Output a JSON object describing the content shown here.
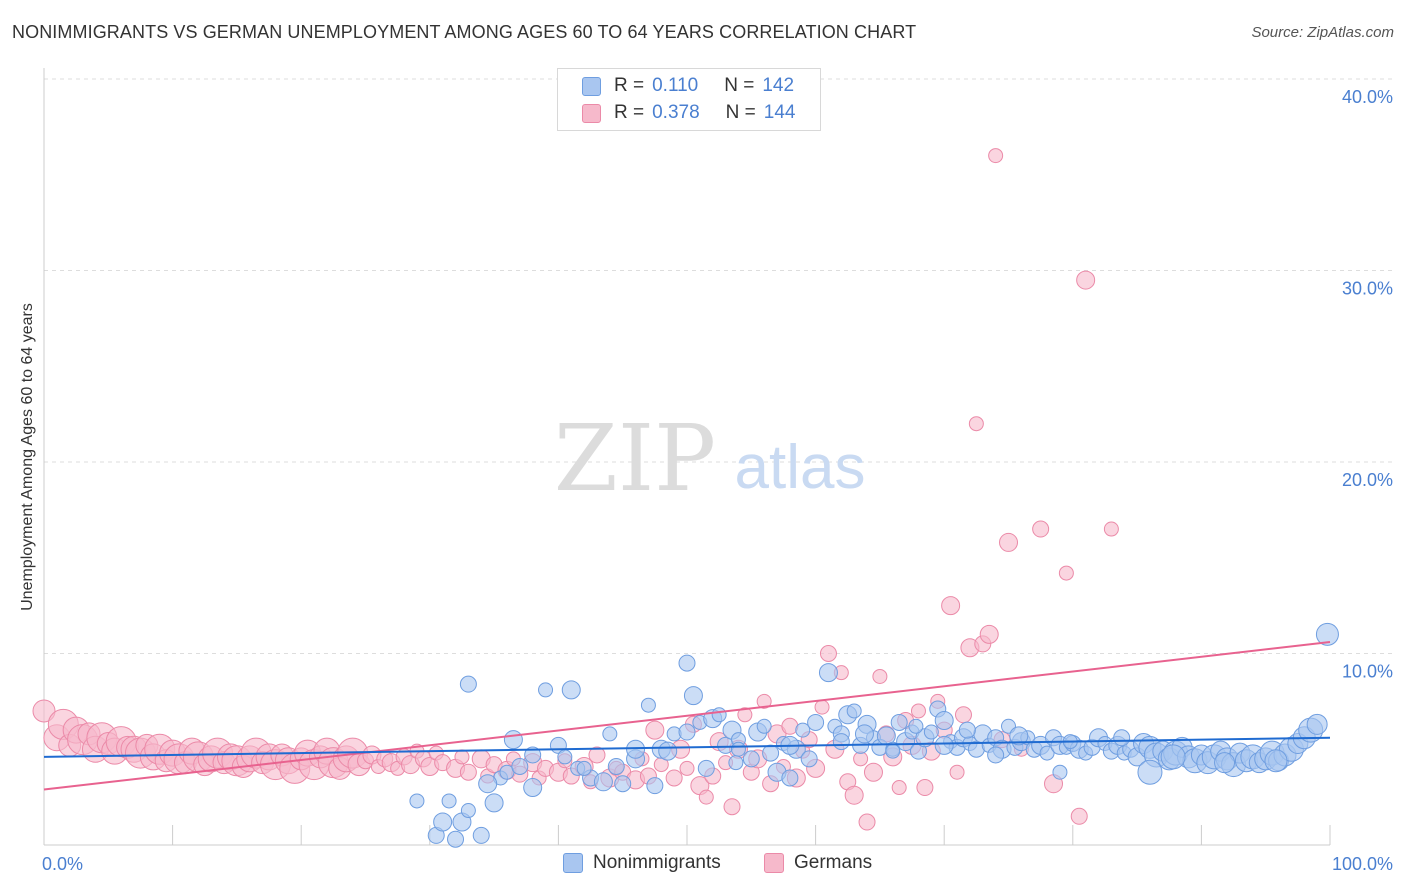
{
  "title": "NONIMMIGRANTS VS GERMAN UNEMPLOYMENT AMONG AGES 60 TO 64 YEARS CORRELATION CHART",
  "source": "Source: ZipAtlas.com",
  "watermark": {
    "zip": "ZIP",
    "atlas": "atlas"
  },
  "legend_top": {
    "rows": [
      {
        "r_label": "R =",
        "r_value": "0.110",
        "n_label": "N =",
        "n_value": "142"
      },
      {
        "r_label": "R =",
        "r_value": "0.378",
        "n_label": "N =",
        "n_value": "144"
      }
    ]
  },
  "legend_bottom": {
    "items": [
      "Nonimmigrants",
      "Germans"
    ]
  },
  "colors": {
    "blue_fill": "#a9c6f0",
    "blue_stroke": "#6f9ee0",
    "blue_line": "#1f6bd1",
    "pink_fill": "#f6b9cb",
    "pink_stroke": "#eb8aa8",
    "pink_line": "#e8628f",
    "tick_label": "#4a7fd0",
    "grid": "#dddddd"
  },
  "chart_data": {
    "type": "scatter",
    "title": "NONIMMIGRANTS VS GERMAN UNEMPLOYMENT AMONG AGES 60 TO 64 YEARS CORRELATION CHART",
    "xlabel": "",
    "ylabel": "Unemployment Among Ages 60 to 64 years",
    "xlim": [
      0,
      100
    ],
    "ylim": [
      0,
      40
    ],
    "x_tick_labels": [
      "0.0%",
      "100.0%"
    ],
    "y_ticks": [
      10,
      20,
      30,
      40
    ],
    "y_tick_labels": [
      "10.0%",
      "20.0%",
      "30.0%",
      "40.0%"
    ],
    "grid": true,
    "legend_position": "top-center",
    "series": [
      {
        "name": "Nonimmigrants",
        "r": 0.11,
        "n": 142,
        "trend": {
          "x": [
            0,
            100
          ],
          "y": [
            4.6,
            5.6
          ]
        },
        "points": [
          [
            29.0,
            2.3
          ],
          [
            30.5,
            0.5
          ],
          [
            31.0,
            1.2
          ],
          [
            31.5,
            2.3
          ],
          [
            32.0,
            0.3
          ],
          [
            32.5,
            1.2
          ],
          [
            33.0,
            1.8
          ],
          [
            34.0,
            0.5
          ],
          [
            35.0,
            2.2
          ],
          [
            35.5,
            3.5
          ],
          [
            33.0,
            8.4
          ],
          [
            34.5,
            3.2
          ],
          [
            36.0,
            3.8
          ],
          [
            37.0,
            4.1
          ],
          [
            38.0,
            3.0
          ],
          [
            39.0,
            8.1
          ],
          [
            40.0,
            5.2
          ],
          [
            41.0,
            8.1
          ],
          [
            41.5,
            4.0
          ],
          [
            42.5,
            3.5
          ],
          [
            43.5,
            3.3
          ],
          [
            44.0,
            5.8
          ],
          [
            45.0,
            3.2
          ],
          [
            46.0,
            4.5
          ],
          [
            47.0,
            7.3
          ],
          [
            47.5,
            3.1
          ],
          [
            48.0,
            5.0
          ],
          [
            49.0,
            5.8
          ],
          [
            50.0,
            9.5
          ],
          [
            50.5,
            7.8
          ],
          [
            51.0,
            6.4
          ],
          [
            51.5,
            4.0
          ],
          [
            52.0,
            6.6
          ],
          [
            52.5,
            6.8
          ],
          [
            53.0,
            5.2
          ],
          [
            53.5,
            6.0
          ],
          [
            54.0,
            5.5
          ],
          [
            55.0,
            4.5
          ],
          [
            55.5,
            5.9
          ],
          [
            56.0,
            6.2
          ],
          [
            56.5,
            4.8
          ],
          [
            57.0,
            3.8
          ],
          [
            57.5,
            5.3
          ],
          [
            58.0,
            3.5
          ],
          [
            58.5,
            5.0
          ],
          [
            59.0,
            6.0
          ],
          [
            60.0,
            6.4
          ],
          [
            61.0,
            9.0
          ],
          [
            61.5,
            6.2
          ],
          [
            62.0,
            5.8
          ],
          [
            62.5,
            6.8
          ],
          [
            63.0,
            7.0
          ],
          [
            63.5,
            5.2
          ],
          [
            64.0,
            6.3
          ],
          [
            64.5,
            5.6
          ],
          [
            65.0,
            5.1
          ],
          [
            65.5,
            5.7
          ],
          [
            66.0,
            5.0
          ],
          [
            66.5,
            6.4
          ],
          [
            67.0,
            5.4
          ],
          [
            67.5,
            5.9
          ],
          [
            68.0,
            4.9
          ],
          [
            68.5,
            5.6
          ],
          [
            69.0,
            5.9
          ],
          [
            69.5,
            7.1
          ],
          [
            70.0,
            6.5
          ],
          [
            70.5,
            5.4
          ],
          [
            71.0,
            5.1
          ],
          [
            71.5,
            5.6
          ],
          [
            72.0,
            5.3
          ],
          [
            72.5,
            5.0
          ],
          [
            73.0,
            5.8
          ],
          [
            73.5,
            5.2
          ],
          [
            74.0,
            5.6
          ],
          [
            74.5,
            5.0
          ],
          [
            75.0,
            6.2
          ],
          [
            75.5,
            5.1
          ],
          [
            76.0,
            5.4
          ],
          [
            76.5,
            5.6
          ],
          [
            77.0,
            5.0
          ],
          [
            77.5,
            5.2
          ],
          [
            78.0,
            4.8
          ],
          [
            78.5,
            5.6
          ],
          [
            79.0,
            5.2
          ],
          [
            79.5,
            5.1
          ],
          [
            80.0,
            5.3
          ],
          [
            80.5,
            5.0
          ],
          [
            81.0,
            4.8
          ],
          [
            81.5,
            5.1
          ],
          [
            82.0,
            5.6
          ],
          [
            82.5,
            5.3
          ],
          [
            83.0,
            4.9
          ],
          [
            83.5,
            5.2
          ],
          [
            84.0,
            4.8
          ],
          [
            84.5,
            5.0
          ],
          [
            85.0,
            4.6
          ],
          [
            85.5,
            5.3
          ],
          [
            86.0,
            5.1
          ],
          [
            86.5,
            4.7
          ],
          [
            87.0,
            4.9
          ],
          [
            87.5,
            4.5
          ],
          [
            88.0,
            4.8
          ],
          [
            88.5,
            5.1
          ],
          [
            89.0,
            4.6
          ],
          [
            89.5,
            4.4
          ],
          [
            90.0,
            4.7
          ],
          [
            90.5,
            4.3
          ],
          [
            91.0,
            4.6
          ],
          [
            91.5,
            4.9
          ],
          [
            92.0,
            4.5
          ],
          [
            92.5,
            4.2
          ],
          [
            93.0,
            4.8
          ],
          [
            93.5,
            4.4
          ],
          [
            94.0,
            4.6
          ],
          [
            94.5,
            4.3
          ],
          [
            95.0,
            4.5
          ],
          [
            95.5,
            4.8
          ],
          [
            96.0,
            4.4
          ],
          [
            96.5,
            4.7
          ],
          [
            97.0,
            5.0
          ],
          [
            97.5,
            5.3
          ],
          [
            98.0,
            5.6
          ],
          [
            98.5,
            6.0
          ],
          [
            99.0,
            6.3
          ],
          [
            99.8,
            11.0
          ],
          [
            36.5,
            5.5
          ],
          [
            40.5,
            4.6
          ],
          [
            44.5,
            4.1
          ],
          [
            48.5,
            4.9
          ],
          [
            53.8,
            4.3
          ],
          [
            59.5,
            4.5
          ],
          [
            63.8,
            5.8
          ],
          [
            67.8,
            6.2
          ],
          [
            71.8,
            6.0
          ],
          [
            75.8,
            5.7
          ],
          [
            79.8,
            5.4
          ],
          [
            83.8,
            5.6
          ],
          [
            87.8,
            4.6
          ],
          [
            91.8,
            4.3
          ],
          [
            95.8,
            4.4
          ],
          [
            86.0,
            3.8
          ],
          [
            79.0,
            3.8
          ],
          [
            74.0,
            4.7
          ],
          [
            70.0,
            5.2
          ],
          [
            66.0,
            4.9
          ],
          [
            62.0,
            5.4
          ],
          [
            58.0,
            5.2
          ],
          [
            54.0,
            5.0
          ],
          [
            50.0,
            5.9
          ],
          [
            46.0,
            5.0
          ],
          [
            42.0,
            4.0
          ],
          [
            38.0,
            4.7
          ]
        ]
      },
      {
        "name": "Germans",
        "r": 0.378,
        "n": 144,
        "trend": {
          "x": [
            0,
            100
          ],
          "y": [
            2.9,
            10.6
          ]
        },
        "points": [
          [
            0.0,
            7.0
          ],
          [
            1.0,
            5.6
          ],
          [
            1.5,
            6.3
          ],
          [
            2.0,
            5.2
          ],
          [
            2.5,
            6.0
          ],
          [
            3.0,
            5.5
          ],
          [
            3.5,
            5.8
          ],
          [
            4.0,
            5.0
          ],
          [
            4.5,
            5.6
          ],
          [
            5.0,
            5.3
          ],
          [
            5.5,
            4.9
          ],
          [
            6.0,
            5.4
          ],
          [
            6.5,
            5.1
          ],
          [
            7.0,
            5.0
          ],
          [
            7.5,
            4.8
          ],
          [
            8.0,
            5.2
          ],
          [
            8.5,
            4.6
          ],
          [
            9.0,
            5.0
          ],
          [
            9.5,
            4.4
          ],
          [
            10.0,
            4.8
          ],
          [
            10.5,
            4.5
          ],
          [
            11.0,
            4.3
          ],
          [
            11.5,
            4.9
          ],
          [
            12.0,
            4.6
          ],
          [
            12.5,
            4.2
          ],
          [
            13.0,
            4.5
          ],
          [
            13.5,
            4.8
          ],
          [
            14.0,
            4.3
          ],
          [
            14.5,
            4.6
          ],
          [
            15.0,
            4.4
          ],
          [
            15.5,
            4.1
          ],
          [
            16.0,
            4.5
          ],
          [
            16.5,
            4.8
          ],
          [
            17.0,
            4.3
          ],
          [
            17.5,
            4.6
          ],
          [
            18.0,
            4.2
          ],
          [
            18.5,
            4.7
          ],
          [
            19.0,
            4.4
          ],
          [
            19.5,
            4.0
          ],
          [
            20.0,
            4.5
          ],
          [
            20.5,
            4.8
          ],
          [
            21.0,
            4.2
          ],
          [
            21.5,
            4.6
          ],
          [
            22.0,
            4.9
          ],
          [
            22.5,
            4.3
          ],
          [
            23.0,
            4.0
          ],
          [
            23.5,
            4.5
          ],
          [
            24.0,
            4.8
          ],
          [
            24.5,
            4.2
          ],
          [
            25.0,
            4.4
          ],
          [
            25.5,
            4.7
          ],
          [
            26.0,
            4.1
          ],
          [
            26.5,
            4.5
          ],
          [
            27.0,
            4.3
          ],
          [
            27.5,
            4.0
          ],
          [
            28.0,
            4.6
          ],
          [
            28.5,
            4.2
          ],
          [
            29.0,
            4.9
          ],
          [
            29.5,
            4.5
          ],
          [
            30.0,
            4.1
          ],
          [
            30.5,
            4.8
          ],
          [
            31.0,
            4.3
          ],
          [
            32.0,
            4.0
          ],
          [
            32.5,
            4.6
          ],
          [
            33.0,
            3.8
          ],
          [
            34.0,
            4.5
          ],
          [
            34.5,
            3.6
          ],
          [
            35.0,
            4.2
          ],
          [
            36.0,
            3.9
          ],
          [
            36.5,
            4.5
          ],
          [
            37.0,
            3.7
          ],
          [
            38.0,
            4.3
          ],
          [
            38.5,
            3.5
          ],
          [
            39.0,
            4.0
          ],
          [
            40.0,
            3.8
          ],
          [
            40.5,
            4.4
          ],
          [
            41.0,
            3.6
          ],
          [
            42.0,
            4.1
          ],
          [
            42.5,
            3.3
          ],
          [
            43.0,
            4.7
          ],
          [
            44.0,
            3.5
          ],
          [
            44.5,
            4.0
          ],
          [
            45.0,
            3.8
          ],
          [
            46.0,
            3.4
          ],
          [
            46.5,
            4.5
          ],
          [
            47.0,
            3.6
          ],
          [
            47.5,
            6.0
          ],
          [
            48.0,
            4.2
          ],
          [
            49.0,
            3.5
          ],
          [
            49.5,
            5.0
          ],
          [
            50.0,
            4.0
          ],
          [
            50.5,
            6.3
          ],
          [
            51.0,
            3.1
          ],
          [
            51.5,
            2.5
          ],
          [
            52.0,
            3.6
          ],
          [
            52.5,
            5.4
          ],
          [
            53.0,
            4.3
          ],
          [
            53.5,
            2.0
          ],
          [
            54.0,
            5.0
          ],
          [
            54.5,
            6.8
          ],
          [
            55.0,
            3.8
          ],
          [
            55.5,
            4.5
          ],
          [
            56.0,
            7.5
          ],
          [
            56.5,
            3.2
          ],
          [
            57.0,
            5.8
          ],
          [
            57.5,
            4.1
          ],
          [
            58.0,
            6.2
          ],
          [
            58.5,
            3.5
          ],
          [
            59.0,
            4.9
          ],
          [
            59.5,
            5.5
          ],
          [
            60.0,
            4.0
          ],
          [
            60.5,
            7.2
          ],
          [
            61.0,
            10.0
          ],
          [
            61.5,
            5.0
          ],
          [
            62.0,
            9.0
          ],
          [
            62.5,
            3.3
          ],
          [
            63.0,
            2.6
          ],
          [
            63.5,
            4.5
          ],
          [
            64.0,
            1.2
          ],
          [
            64.5,
            3.8
          ],
          [
            65.0,
            8.8
          ],
          [
            65.5,
            5.8
          ],
          [
            66.0,
            4.6
          ],
          [
            66.5,
            3.0
          ],
          [
            67.0,
            6.5
          ],
          [
            67.5,
            5.2
          ],
          [
            68.0,
            7.0
          ],
          [
            68.5,
            3.0
          ],
          [
            69.0,
            4.9
          ],
          [
            69.5,
            7.5
          ],
          [
            70.0,
            6.0
          ],
          [
            70.5,
            12.5
          ],
          [
            71.0,
            3.8
          ],
          [
            71.5,
            6.8
          ],
          [
            72.0,
            10.3
          ],
          [
            72.5,
            22.0
          ],
          [
            73.0,
            10.5
          ],
          [
            73.5,
            11.0
          ],
          [
            74.0,
            36.0
          ],
          [
            74.5,
            5.5
          ],
          [
            75.0,
            15.8
          ],
          [
            76.0,
            5.0
          ],
          [
            77.5,
            16.5
          ],
          [
            78.5,
            3.2
          ],
          [
            79.5,
            14.2
          ],
          [
            80.5,
            1.5
          ],
          [
            81.0,
            29.5
          ],
          [
            83.0,
            16.5
          ]
        ]
      }
    ]
  }
}
